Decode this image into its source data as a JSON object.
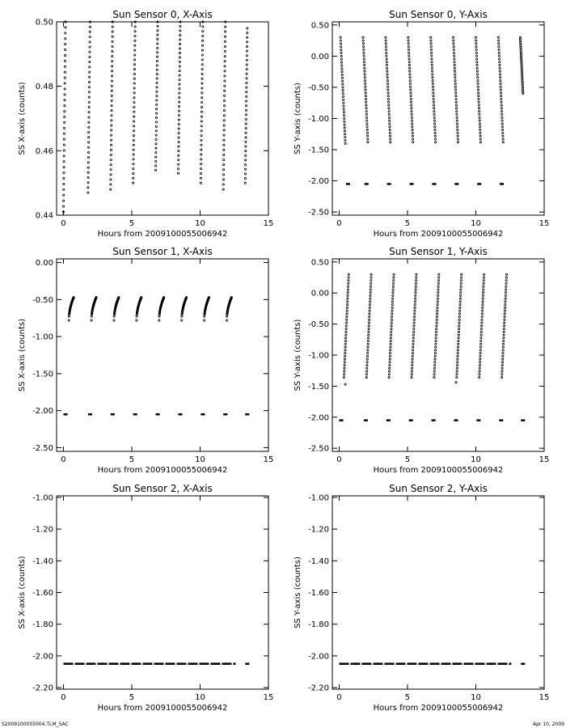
{
  "footer": {
    "left": "S2009100055004.TLM_SAC",
    "right": "Apr 10, 2009"
  },
  "chart_data": [
    {
      "type": "scatter",
      "title": "Sun Sensor 0, X-Axis",
      "xlabel": "Hours from 2009100055006942",
      "ylabel": "SS X-axis (counts)",
      "xlim": [
        -0.5,
        15
      ],
      "ylim": [
        0.44,
        0.5
      ],
      "xticks": [
        0,
        5,
        10,
        15
      ],
      "yticks": [
        0.44,
        0.46,
        0.48,
        0.5
      ],
      "ytick_labels": [
        "0.44",
        "0.46",
        "0.48",
        "0.50"
      ],
      "series": [
        {
          "segments": [
            {
              "x0": 0.0,
              "x1": 0.15,
              "y0": 0.441,
              "y1": 0.5
            },
            {
              "x0": 1.8,
              "x1": 1.95,
              "y0": 0.447,
              "y1": 0.5
            },
            {
              "x0": 3.45,
              "x1": 3.6,
              "y0": 0.448,
              "y1": 0.5
            },
            {
              "x0": 5.1,
              "x1": 5.25,
              "y0": 0.45,
              "y1": 0.5
            },
            {
              "x0": 6.75,
              "x1": 6.9,
              "y0": 0.454,
              "y1": 0.5
            },
            {
              "x0": 8.4,
              "x1": 8.55,
              "y0": 0.453,
              "y1": 0.5
            },
            {
              "x0": 10.05,
              "x1": 10.2,
              "y0": 0.45,
              "y1": 0.5
            },
            {
              "x0": 11.7,
              "x1": 11.85,
              "y0": 0.448,
              "y1": 0.5
            },
            {
              "x0": 13.3,
              "x1": 13.45,
              "y0": 0.45,
              "y1": 0.498
            }
          ]
        }
      ]
    },
    {
      "type": "scatter",
      "title": "Sun Sensor 0, Y-Axis",
      "xlabel": "Hours from 2009100055006942",
      "ylabel": "SS Y-axis (counts)",
      "xlim": [
        -0.5,
        15
      ],
      "ylim": [
        -2.55,
        0.55
      ],
      "xticks": [
        0,
        5,
        10,
        15
      ],
      "yticks": [
        -2.5,
        -2.0,
        -1.5,
        -1.0,
        -0.5,
        0.0,
        0.5
      ],
      "ytick_labels": [
        "-2.50",
        "-2.00",
        "-1.50",
        "-1.00",
        "-0.50",
        "0.00",
        "0.50"
      ],
      "series": [
        {
          "segments": [
            {
              "x0": 0.1,
              "x1": 0.45,
              "y0": 0.3,
              "y1": -1.4
            },
            {
              "x0": 1.75,
              "x1": 2.1,
              "y0": 0.3,
              "y1": -1.38
            },
            {
              "x0": 3.4,
              "x1": 3.75,
              "y0": 0.3,
              "y1": -1.38
            },
            {
              "x0": 5.05,
              "x1": 5.4,
              "y0": 0.3,
              "y1": -1.38
            },
            {
              "x0": 6.7,
              "x1": 7.05,
              "y0": 0.3,
              "y1": -1.38
            },
            {
              "x0": 8.35,
              "x1": 8.7,
              "y0": 0.3,
              "y1": -1.38
            },
            {
              "x0": 10.0,
              "x1": 10.35,
              "y0": 0.3,
              "y1": -1.38
            },
            {
              "x0": 11.65,
              "x1": 12.0,
              "y0": 0.3,
              "y1": -1.38
            },
            {
              "x0": 13.25,
              "x1": 13.45,
              "y0": 0.3,
              "y1": -0.6
            }
          ]
        },
        {
          "dashes": {
            "y": -2.05,
            "x": [
              0.5,
              1.85,
              3.5,
              5.15,
              6.8,
              8.45,
              10.1,
              11.75
            ]
          }
        }
      ]
    },
    {
      "type": "scatter",
      "title": "Sun Sensor 1, X-Axis",
      "xlabel": "Hours from 2009100055006942",
      "ylabel": "SS X-axis (counts)",
      "xlim": [
        -0.5,
        15
      ],
      "ylim": [
        -2.55,
        0.05
      ],
      "xticks": [
        0,
        5,
        10,
        15
      ],
      "yticks": [
        -2.5,
        -2.0,
        -1.5,
        -1.0,
        -0.5,
        0.0
      ],
      "ytick_labels": [
        "-2.50",
        "-2.00",
        "-1.50",
        "-1.00",
        "-0.50",
        "0.00"
      ],
      "series": [
        {
          "segments": [
            {
              "x0": 0.4,
              "x1": 0.75,
              "y0": -0.78,
              "y1": -0.47,
              "curve": true
            },
            {
              "x0": 2.05,
              "x1": 2.4,
              "y0": -0.78,
              "y1": -0.47,
              "curve": true
            },
            {
              "x0": 3.7,
              "x1": 4.05,
              "y0": -0.78,
              "y1": -0.47,
              "curve": true
            },
            {
              "x0": 5.35,
              "x1": 5.7,
              "y0": -0.78,
              "y1": -0.47,
              "curve": true
            },
            {
              "x0": 7.0,
              "x1": 7.35,
              "y0": -0.78,
              "y1": -0.47,
              "curve": true
            },
            {
              "x0": 8.65,
              "x1": 9.0,
              "y0": -0.78,
              "y1": -0.47,
              "curve": true
            },
            {
              "x0": 10.3,
              "x1": 10.65,
              "y0": -0.78,
              "y1": -0.47,
              "curve": true
            },
            {
              "x0": 11.95,
              "x1": 12.3,
              "y0": -0.78,
              "y1": -0.47,
              "curve": true
            }
          ]
        },
        {
          "dashes": {
            "y": -2.05,
            "x": [
              0.0,
              1.8,
              3.45,
              5.1,
              6.75,
              8.4,
              10.05,
              11.7,
              13.3
            ]
          }
        }
      ]
    },
    {
      "type": "scatter",
      "title": "Sun Sensor 1, Y-Axis",
      "xlabel": "Hours from 2009100055006942",
      "ylabel": "SS Y-axis (counts)",
      "xlim": [
        -0.5,
        15
      ],
      "ylim": [
        -2.55,
        0.55
      ],
      "xticks": [
        0,
        5,
        10,
        15
      ],
      "yticks": [
        -2.5,
        -2.0,
        -1.5,
        -1.0,
        -0.5,
        0.0,
        0.5
      ],
      "ytick_labels": [
        "-2.50",
        "-2.00",
        "-1.50",
        "-1.00",
        "-0.50",
        "0.00",
        "0.50"
      ],
      "series": [
        {
          "segments": [
            {
              "x0": 0.35,
              "x1": 0.7,
              "y0": -1.36,
              "y1": 0.3
            },
            {
              "x0": 2.0,
              "x1": 2.35,
              "y0": -1.36,
              "y1": 0.3
            },
            {
              "x0": 3.65,
              "x1": 4.0,
              "y0": -1.36,
              "y1": 0.3
            },
            {
              "x0": 5.3,
              "x1": 5.65,
              "y0": -1.36,
              "y1": 0.3
            },
            {
              "x0": 6.95,
              "x1": 7.3,
              "y0": -1.36,
              "y1": 0.3
            },
            {
              "x0": 8.6,
              "x1": 8.95,
              "y0": -1.36,
              "y1": 0.3
            },
            {
              "x0": 10.25,
              "x1": 10.6,
              "y0": -1.36,
              "y1": 0.3
            },
            {
              "x0": 11.9,
              "x1": 12.25,
              "y0": -1.36,
              "y1": 0.3
            }
          ]
        },
        {
          "points": [
            [
              0.45,
              -1.47
            ],
            [
              8.55,
              -1.44
            ]
          ]
        },
        {
          "dashes": {
            "y": -2.05,
            "x": [
              0.0,
              1.8,
              3.45,
              5.1,
              6.75,
              8.4,
              10.05,
              11.7,
              13.3
            ]
          }
        }
      ]
    },
    {
      "type": "scatter",
      "title": "Sun Sensor 2, X-Axis",
      "xlabel": "Hours from 2009100055006942",
      "ylabel": "SS X-axis (counts)",
      "xlim": [
        -0.5,
        15
      ],
      "ylim": [
        -2.21,
        -0.99
      ],
      "xticks": [
        0,
        5,
        10,
        15
      ],
      "yticks": [
        -2.2,
        -2.0,
        -1.8,
        -1.6,
        -1.4,
        -1.2,
        -1.0
      ],
      "ytick_labels": [
        "-2.20",
        "-2.00",
        "-1.80",
        "-1.60",
        "-1.40",
        "-1.20",
        "-1.00"
      ],
      "series": [
        {
          "line": {
            "y": -2.05,
            "x0": 0.0,
            "x1": 12.6
          }
        },
        {
          "dashes": {
            "y": -2.05,
            "x": [
              13.3
            ]
          }
        }
      ]
    },
    {
      "type": "scatter",
      "title": "Sun Sensor 2, Y-Axis",
      "xlabel": "Hours from 2009100055006942",
      "ylabel": "SS Y-axis (counts)",
      "xlim": [
        -0.5,
        15
      ],
      "ylim": [
        -2.21,
        -0.99
      ],
      "xticks": [
        0,
        5,
        10,
        15
      ],
      "yticks": [
        -2.2,
        -2.0,
        -1.8,
        -1.6,
        -1.4,
        -1.2,
        -1.0
      ],
      "ytick_labels": [
        "-2.20",
        "-2.00",
        "-1.80",
        "-1.60",
        "-1.40",
        "-1.20",
        "-1.00"
      ],
      "series": [
        {
          "line": {
            "y": -2.05,
            "x0": 0.0,
            "x1": 12.6
          }
        },
        {
          "dashes": {
            "y": -2.05,
            "x": [
              13.3
            ]
          }
        }
      ]
    }
  ]
}
